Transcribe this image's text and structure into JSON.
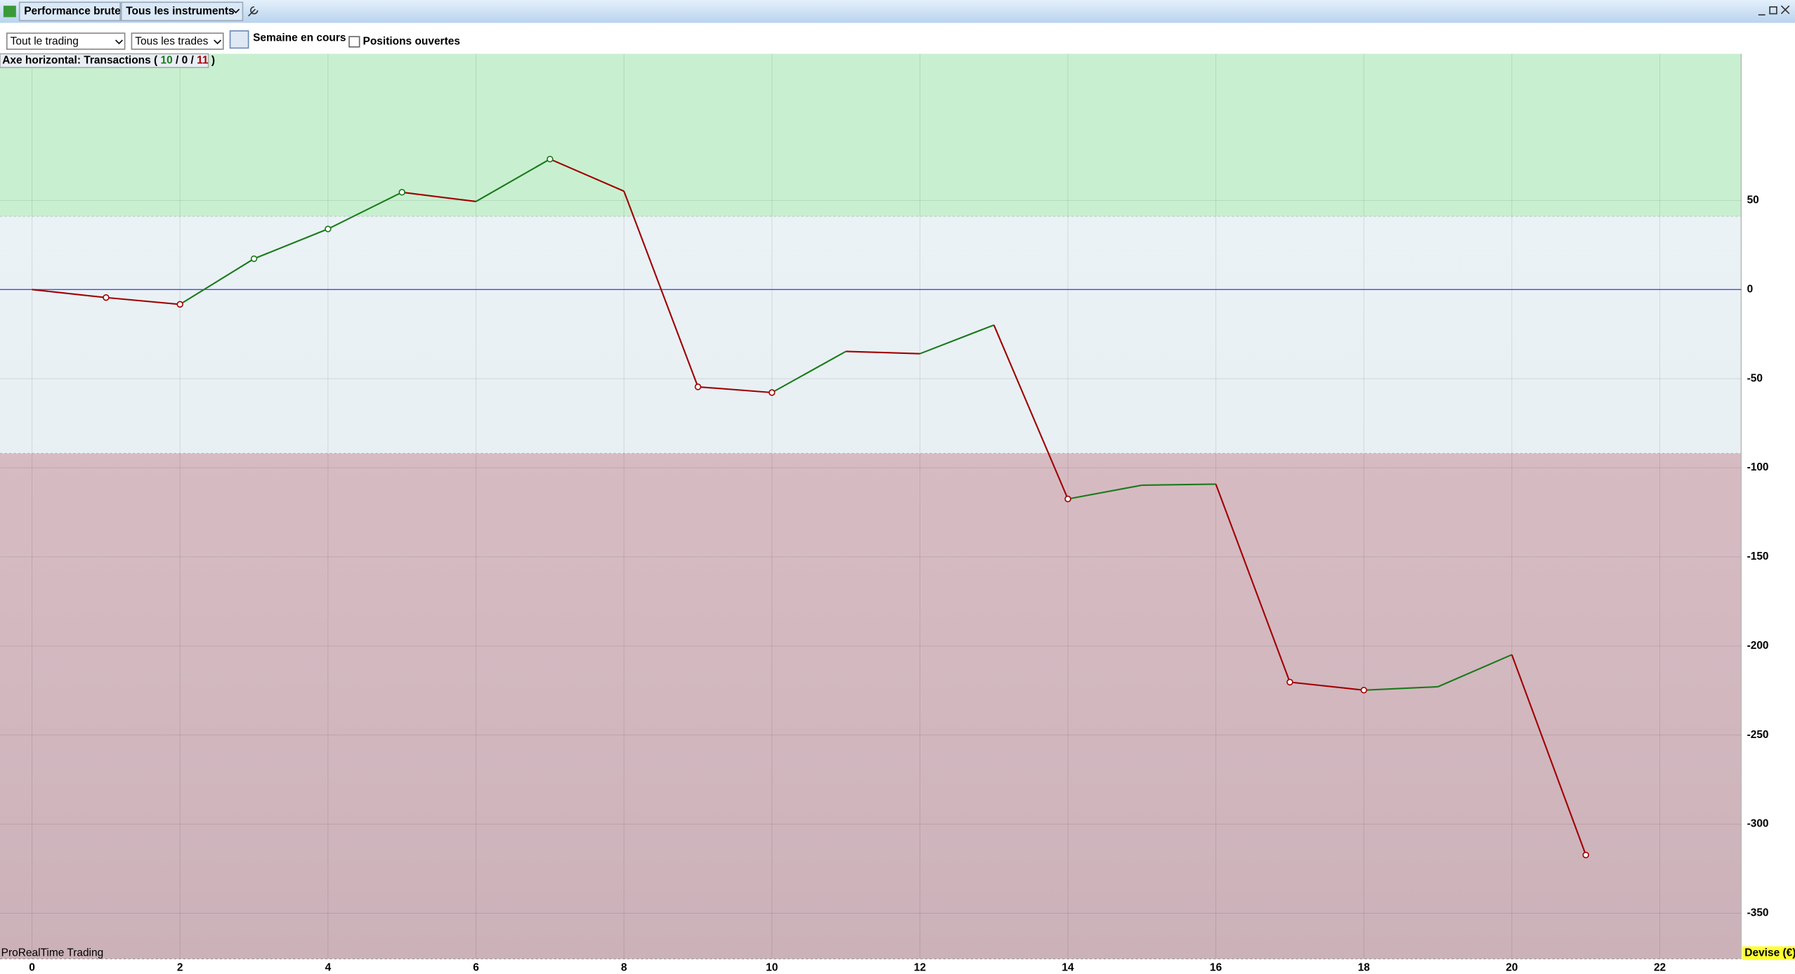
{
  "toolbar": {
    "title": "Performance brute",
    "instruments": "Tous les instruments"
  },
  "controls": {
    "scope": "Tout le trading",
    "trades": "Tous les trades",
    "period": "Semaine en cours",
    "open_positions": "Positions ouvertes"
  },
  "axis_caption": {
    "prefix": "Axe horizontal: Transactions (",
    "winning": 10,
    "neutral": 0,
    "losing": 11,
    "separator": "/",
    "suffix": ")"
  },
  "footer": {
    "brand": "ProRealTime Trading",
    "currency": "Devise (€)"
  },
  "chart_data": {
    "type": "line",
    "x": [
      0,
      1,
      2,
      3,
      4,
      5,
      6,
      7,
      8,
      9,
      10,
      11,
      12,
      13,
      14,
      15,
      16,
      17,
      18,
      19,
      20,
      21
    ],
    "values": [
      0,
      -4.5,
      -8.3,
      17.3,
      34,
      54.6,
      49.4,
      73.2,
      55.2,
      -54.6,
      -57.8,
      -34.7,
      -36,
      -19.9,
      -117.5,
      -109.8,
      -109.2,
      -220.3,
      -224.8,
      -222.9,
      -204.9,
      -317.3
    ],
    "markers": [
      false,
      true,
      true,
      true,
      true,
      true,
      false,
      true,
      false,
      true,
      true,
      false,
      false,
      false,
      true,
      false,
      false,
      true,
      true,
      false,
      false,
      true
    ],
    "up_color": "#1a7a1a",
    "down_color": "#a00000",
    "zero_line_color": "#4a4ae0",
    "bands": [
      {
        "from": 41,
        "to": 132.3,
        "color": "#c8f0d0"
      },
      {
        "from": -92,
        "to": 41,
        "color": "#eaf2f6"
      },
      {
        "from": -375.6,
        "to": -92,
        "color": "#d8bcc4"
      }
    ],
    "xlim": [
      -0.433,
      23.1
    ],
    "xticks": [
      0,
      2,
      4,
      6,
      8,
      10,
      12,
      14,
      16,
      18,
      20,
      22
    ],
    "ylim": [
      -375.6,
      132.3
    ],
    "yticks": [
      50,
      0,
      -50,
      -100,
      -150,
      -200,
      -250,
      -300,
      -350
    ],
    "grid": true
  }
}
